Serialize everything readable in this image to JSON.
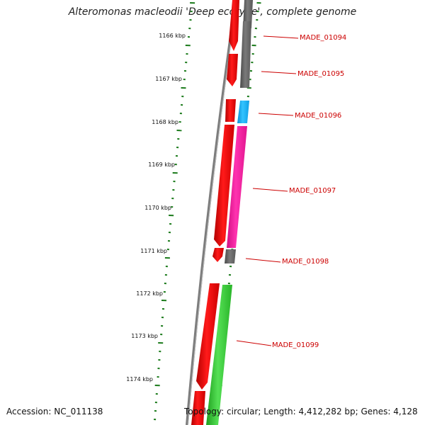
{
  "title": "Alteromonas macleodii 'Deep ecotype', complete genome",
  "footer": {
    "accession": "Accession: NC_011138",
    "topology": "Topology: circular; Length: 4,412,282 bp; Genes: 4,128"
  },
  "scale_ticks": [
    {
      "label": "1166 kbp",
      "position_kbp": 1166
    },
    {
      "label": "1167 kbp",
      "position_kbp": 1167
    },
    {
      "label": "1168 kbp",
      "position_kbp": 1168
    },
    {
      "label": "1169 kbp",
      "position_kbp": 1169
    },
    {
      "label": "1170 kbp",
      "position_kbp": 1170
    },
    {
      "label": "1171 kbp",
      "position_kbp": 1171
    },
    {
      "label": "1172 kbp",
      "position_kbp": 1172
    },
    {
      "label": "1173 kbp",
      "position_kbp": 1173
    },
    {
      "label": "1174 kbp",
      "position_kbp": 1174
    }
  ],
  "gene_labels": [
    {
      "label": "MADE_01094"
    },
    {
      "label": "MADE_01095"
    },
    {
      "label": "MADE_01096"
    },
    {
      "label": "MADE_01097"
    },
    {
      "label": "MADE_01098"
    },
    {
      "label": "MADE_01099"
    }
  ],
  "colors": {
    "cds": "#ff0000",
    "gene_gray": "#6e6e6e",
    "gene_blue": "#1ab2ff",
    "gene_pink": "#ff1aa0",
    "gene_green": "#2ecc2e",
    "tick_green": "#1a7a1a",
    "backbone": "#8a8a8a",
    "label_red": "#cc0000"
  }
}
